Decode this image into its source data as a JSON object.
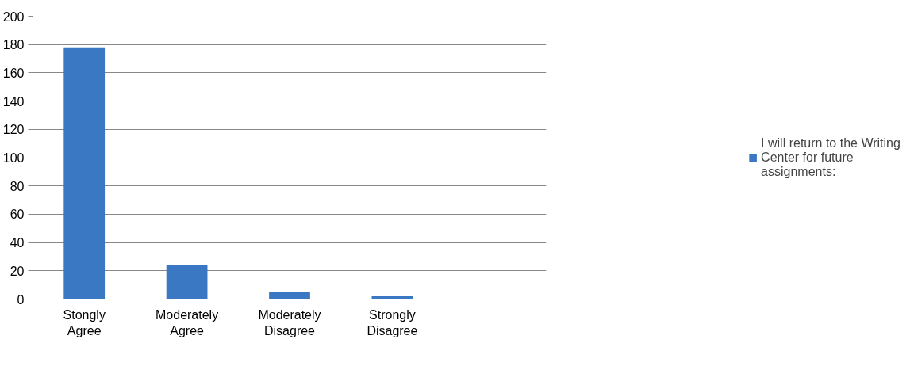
{
  "chart_data": {
    "type": "bar",
    "categories": [
      "Stongly Agree",
      "Moderately Agree",
      "Moderately Disagree",
      "Strongly Disagree",
      null
    ],
    "series": [
      {
        "name": "I will return to the Writing Center for future assignments:",
        "color": "#3a78c3",
        "values": [
          178,
          24,
          5,
          2,
          null
        ]
      }
    ],
    "ylim": [
      0,
      200
    ],
    "yticks": [
      0,
      20,
      40,
      60,
      80,
      100,
      120,
      140,
      160,
      180,
      200
    ],
    "grid": "y",
    "legend": "right"
  }
}
